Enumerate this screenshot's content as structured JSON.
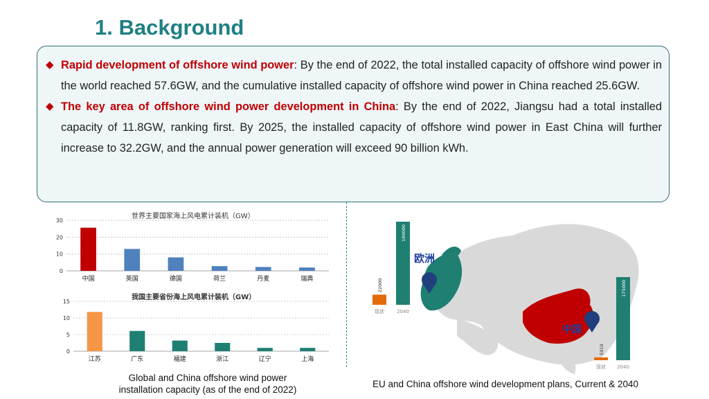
{
  "slide": {
    "title": "1. Background",
    "paragraphs": [
      {
        "head": "Rapid development of offshore wind power",
        "sep": ":",
        "body": " By the end of 2022, the total installed capacity of offshore wind power in the world reached 57.6GW, and the cumulative installed capacity of offshore wind power in China reached 25.6GW."
      },
      {
        "head": "The key area of offshore wind power development in China",
        "sep": ":",
        "body": " By the end of 2022, Jiangsu had a total installed capacity of 11.8GW, ranking first. By 2025, the installed capacity of offshore wind power in East China will further increase to 32.2GW, and the annual power generation will exceed 90 billion kWh."
      }
    ],
    "bullet_glyph": "◆",
    "caption_left_line1": "Global and China offshore wind power",
    "caption_left_line2": "installation capacity (as of the end of 2022)",
    "caption_right": "EU and China offshore wind development plans, Current & 2040"
  },
  "chart_data": [
    {
      "type": "bar",
      "title": "世界主要国家海上风电累计装机（GW）",
      "categories": [
        "中国",
        "英国",
        "德国",
        "荷兰",
        "丹麦",
        "瑞典"
      ],
      "values": [
        25.6,
        13,
        8,
        2.8,
        2.3,
        2
      ],
      "ylim": [
        0,
        30
      ],
      "yticks": [
        0,
        10,
        20,
        30
      ],
      "colors": [
        "#c00000",
        "#4f81bd",
        "#4f81bd",
        "#4f81bd",
        "#4f81bd",
        "#4f81bd"
      ],
      "grid": true
    },
    {
      "type": "bar",
      "title": "我国主要省份海上风电累计装机（GW）",
      "categories": [
        "江苏",
        "广东",
        "福建",
        "浙江",
        "辽宁",
        "上海"
      ],
      "values": [
        11.8,
        6.1,
        3.2,
        2.5,
        1,
        1
      ],
      "ylim": [
        0,
        15
      ],
      "yticks": [
        0,
        5,
        10,
        15
      ],
      "colors": [
        "#f79646",
        "#1f7f72",
        "#1f7f72",
        "#1f7f72",
        "#1f7f72",
        "#1f7f72"
      ],
      "grid": true
    },
    {
      "type": "bar",
      "title": "",
      "series_label": "欧洲",
      "categories": [
        "现状",
        "2040"
      ],
      "values": [
        22000,
        180000
      ],
      "colors": [
        "#e36c0a",
        "#1f7f72"
      ],
      "ylim": [
        0,
        180000
      ]
    },
    {
      "type": "bar",
      "title": "",
      "series_label": "中国",
      "categories": [
        "现状",
        "2040"
      ],
      "values": [
        5910,
        175000
      ],
      "colors": [
        "#e36c0a",
        "#1f7f72"
      ],
      "ylim": [
        0,
        175000
      ]
    }
  ],
  "map": {
    "land_color": "#d9d9d9",
    "europe_color": "#1f7f72",
    "china_color": "#c00000",
    "pin_color": "#1f3f7f"
  }
}
